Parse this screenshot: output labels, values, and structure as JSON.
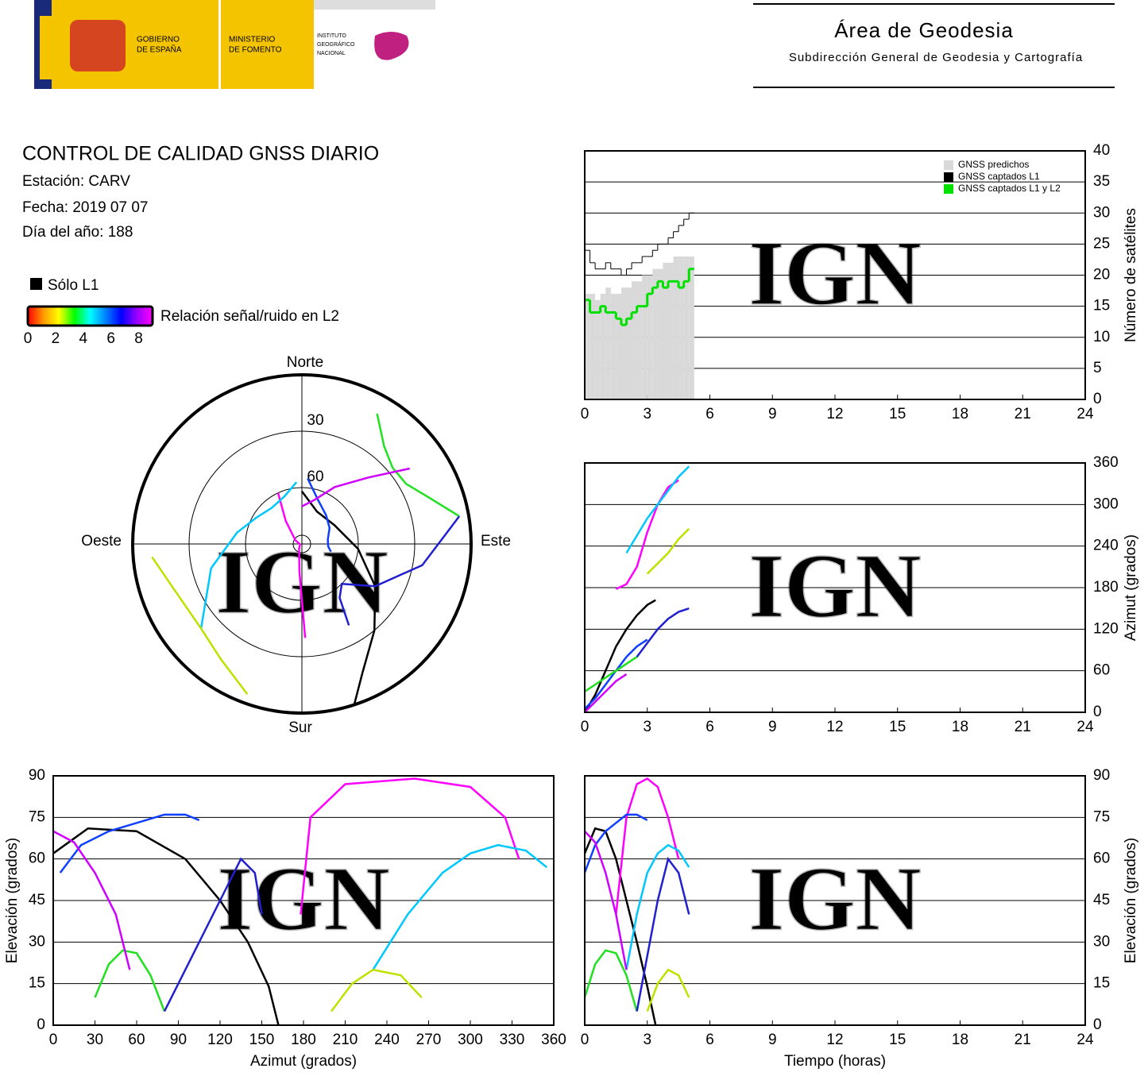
{
  "header": {
    "logo_lines": [
      "GOBIERNO",
      "DE ESPAÑA",
      "MINISTERIO",
      "DE FOMENTO",
      "INSTITUTO",
      "GEOGRÁFICO",
      "NACIONAL"
    ],
    "area": "Área de Geodesia",
    "subtitle": "Subdirección General de Geodesia y Cartografía"
  },
  "info": {
    "title": "CONTROL DE CALIDAD GNSS DIARIO",
    "station": "Estación: CARV",
    "date": "Fecha: 2019 07 07",
    "doy": "Día del año: 188"
  },
  "legend": {
    "l1_only": "Sólo L1",
    "l1_color": "#000000",
    "snr_label": "Relación señal/ruido en L2",
    "snr_lim": [
      0,
      9
    ],
    "snr_ticks": [
      0,
      2,
      4,
      6,
      8
    ],
    "snr_colors": [
      "#ff0000",
      "#ff9900",
      "#ffff00",
      "#00ff00",
      "#00ffff",
      "#0080ff",
      "#0000ff",
      "#9900ff",
      "#ff00ff"
    ]
  },
  "watermark": "IGN",
  "chart_data": [
    {
      "type": "step",
      "ylabel": "Número de satélites",
      "xlim": [
        0,
        24
      ],
      "xticks": [
        0,
        3,
        6,
        9,
        12,
        15,
        18,
        21,
        24
      ],
      "ylim": [
        0,
        40
      ],
      "yticks": [
        0,
        5,
        10,
        15,
        20,
        25,
        30,
        35,
        40
      ],
      "grid": true,
      "x": [
        0,
        0.25,
        0.5,
        0.75,
        1,
        1.25,
        1.5,
        1.75,
        2,
        2.25,
        2.5,
        2.75,
        3,
        3.25,
        3.5,
        3.75,
        4,
        4.25,
        4.5,
        4.75,
        5
      ],
      "series": [
        {
          "name": "GNSS predichos",
          "color": "#d9d9d9",
          "fill": true,
          "values": [
            17,
            17,
            16,
            17,
            18,
            17,
            17,
            18,
            18,
            19,
            19,
            20,
            20,
            21,
            21,
            22,
            22,
            23,
            23,
            23,
            23
          ]
        },
        {
          "name": "GNSS captados L1",
          "color": "#000000",
          "values": [
            24,
            22,
            21,
            21,
            22,
            21,
            21,
            20,
            21,
            22,
            22,
            23,
            23,
            24,
            25,
            25,
            26,
            27,
            28,
            29,
            30
          ]
        },
        {
          "name": "GNSS captados L1 y L2",
          "color": "#00e000",
          "values": [
            16,
            14,
            14,
            15,
            14,
            14,
            13,
            12,
            13,
            14,
            15,
            15,
            17,
            18,
            19,
            18,
            19,
            19,
            18,
            19,
            21
          ]
        }
      ]
    },
    {
      "type": "tracks",
      "polar": {
        "north": "Norte",
        "south": "Sur",
        "west": "Oeste",
        "east": "Este",
        "rlim": [
          0,
          90
        ],
        "rticks": [
          30,
          60
        ]
      },
      "azimuth_time": {
        "ylabel": "Azimut (grados)",
        "ylim": [
          0,
          360
        ],
        "yticks": [
          0,
          60,
          120,
          180,
          240,
          300,
          360
        ]
      },
      "elevation_azimuth": {
        "xlabel": "Azimut (grados)",
        "ylabel": "Elevación (grados)",
        "xlim": [
          0,
          360
        ],
        "xticks": [
          0,
          30,
          60,
          90,
          120,
          150,
          180,
          210,
          240,
          270,
          300,
          330,
          360
        ],
        "ylim": [
          0,
          90
        ],
        "yticks": [
          0,
          15,
          30,
          45,
          60,
          75,
          90
        ]
      },
      "elevation_time": {
        "xlabel": "Tiempo (horas)",
        "ylabel": "Elevación (grados)",
        "ylim": [
          0,
          90
        ],
        "yticks": [
          0,
          15,
          30,
          45,
          60,
          75,
          90
        ]
      },
      "tlim": [
        0,
        24
      ],
      "tticks": [
        0,
        3,
        6,
        9,
        12,
        15,
        18,
        21,
        24
      ],
      "series": [
        {
          "color": "#000000",
          "time": [
            0,
            0.5,
            1,
            1.5,
            2,
            2.5,
            3,
            3.4
          ],
          "azimuth": [
            0,
            25,
            60,
            95,
            120,
            140,
            155,
            162
          ],
          "elevation": [
            62,
            71,
            70,
            60,
            45,
            30,
            14,
            0
          ]
        },
        {
          "color": "#ff00ff",
          "time": [
            1.5,
            2,
            2.5,
            3,
            3.5,
            4,
            4.5
          ],
          "azimuth": [
            178,
            185,
            210,
            260,
            300,
            325,
            335
          ],
          "elevation": [
            40,
            75,
            87,
            89,
            86,
            75,
            60
          ]
        },
        {
          "color": "#1040ff",
          "time": [
            0,
            0.5,
            1,
            1.5,
            2,
            2.5,
            3
          ],
          "azimuth": [
            5,
            20,
            40,
            60,
            80,
            95,
            105
          ],
          "elevation": [
            55,
            65,
            70,
            73,
            76,
            76,
            74
          ]
        },
        {
          "color": "#00c8ff",
          "time": [
            2,
            2.5,
            3,
            3.5,
            4,
            4.5,
            5
          ],
          "azimuth": [
            230,
            255,
            280,
            300,
            320,
            340,
            355
          ],
          "elevation": [
            20,
            40,
            55,
            62,
            65,
            63,
            57
          ]
        },
        {
          "color": "#20e020",
          "time": [
            0,
            0.5,
            1,
            1.5,
            2,
            2.5
          ],
          "azimuth": [
            30,
            40,
            50,
            60,
            70,
            80
          ],
          "elevation": [
            10,
            22,
            27,
            26,
            18,
            5
          ]
        },
        {
          "color": "#c0e000",
          "time": [
            3,
            3.5,
            4,
            4.5,
            5
          ],
          "azimuth": [
            200,
            215,
            230,
            250,
            265
          ],
          "elevation": [
            5,
            15,
            20,
            18,
            10
          ]
        },
        {
          "color": "#d000ff",
          "time": [
            0,
            0.5,
            1,
            1.5,
            2
          ],
          "azimuth": [
            0,
            15,
            30,
            45,
            55
          ],
          "elevation": [
            70,
            66,
            55,
            40,
            20
          ]
        },
        {
          "color": "#2020d0",
          "time": [
            2.5,
            3,
            3.5,
            4,
            4.5,
            5
          ],
          "azimuth": [
            80,
            100,
            120,
            135,
            145,
            150
          ],
          "elevation": [
            5,
            25,
            45,
            60,
            55,
            40
          ]
        }
      ]
    }
  ]
}
